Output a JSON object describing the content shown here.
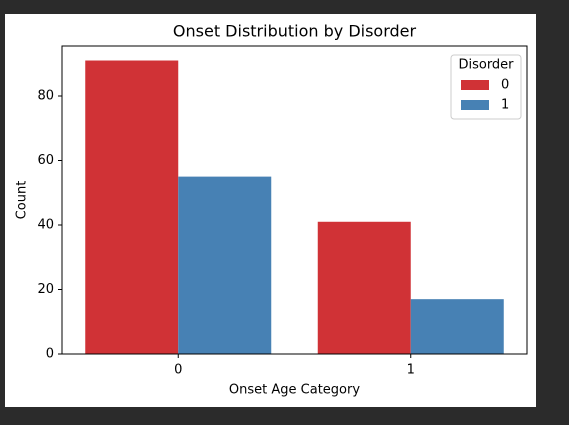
{
  "chart_data": {
    "type": "bar",
    "title": "Onset Distribution by Disorder",
    "x_label": "Onset Age Category",
    "y_label": "Count",
    "categories": [
      "0",
      "1"
    ],
    "series": [
      {
        "name": "0",
        "color": "#d03236",
        "values": [
          91,
          41
        ]
      },
      {
        "name": "1",
        "color": "#4781b4",
        "values": [
          55,
          17
        ]
      }
    ],
    "ylim": [
      0,
      95.5
    ],
    "yticks": [
      0,
      20,
      40,
      60,
      80
    ],
    "legend_title": "Disorder",
    "legend_position": "upper right"
  }
}
